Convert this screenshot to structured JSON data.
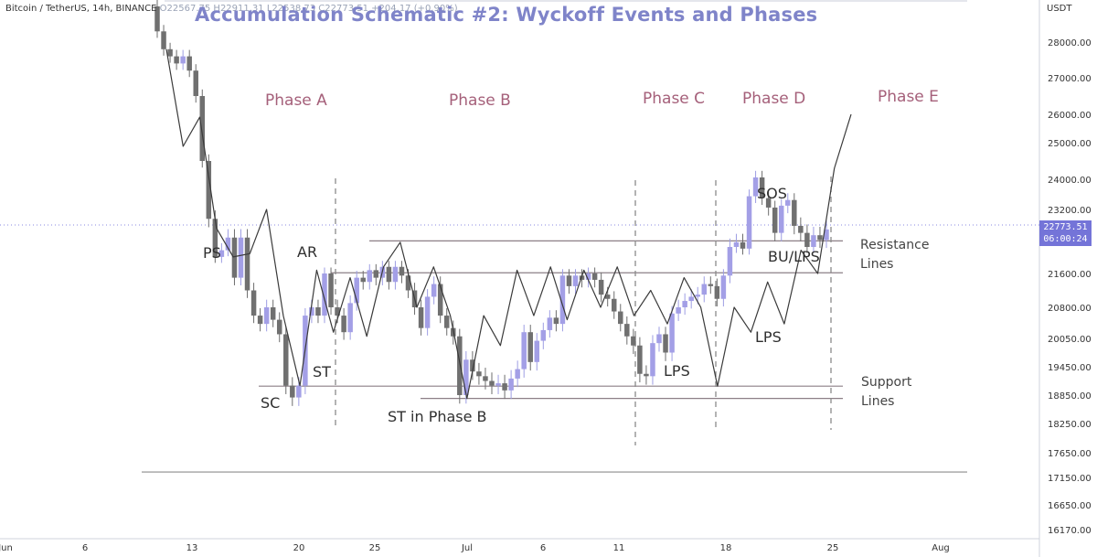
{
  "header": {
    "symbol": "Bitcoin / TetherUS, 14h, BINANCE",
    "ohlc": "O22567.75 H22911.31 L22538.73 C22773.51 +204.17 (+0.90%)",
    "currency": "USDT"
  },
  "chart_data": {
    "type": "candlestick",
    "title": "Accumulation Schematic #2: Wyckoff Events and Phases",
    "price_axis": {
      "ticks": [
        28000.0,
        27000.0,
        26000.0,
        25000.0,
        24000.0,
        23200.0,
        21600.0,
        20800.0,
        20050.0,
        19450.0,
        18850.0,
        18250.0,
        17650.0,
        17150.0,
        16650.0,
        16170.0
      ],
      "tick_labels": [
        "28000.00",
        "27000.00",
        "26000.00",
        "25000.00",
        "24000.00",
        "23200.00",
        "21600.00",
        "20800.00",
        "20050.00",
        "19450.00",
        "18850.00",
        "18250.00",
        "17650.00",
        "17150.00",
        "16650.00",
        "16170.00"
      ],
      "current_price": "22773.51",
      "countdown": "06:00:24"
    },
    "time_axis": {
      "labels": [
        "Jun",
        "6",
        "13",
        "20",
        "25",
        "Jul",
        "6",
        "11",
        "18",
        "25",
        "Aug"
      ]
    },
    "phases": [
      "Phase A",
      "Phase B",
      "Phase C",
      "Phase D",
      "Phase E"
    ],
    "events": {
      "ps": "PS",
      "sc": "SC",
      "ar": "AR",
      "st": "ST",
      "st_phase_b": "ST in Phase B",
      "lps_c": "LPS",
      "lps_d": "LPS",
      "sos": "SOS",
      "bu_lps": "BU/LPS"
    },
    "side_labels": {
      "resistance": [
        "Resistance",
        "Lines"
      ],
      "support": [
        "Support",
        "Lines"
      ]
    },
    "levels": {
      "resistance_upper": 22530,
      "resistance_lower": 21620,
      "support_upper": 19040,
      "support_lower": 18780,
      "range_floor": 17260
    },
    "candles": [
      {
        "o": 29000,
        "c": 28300
      },
      {
        "o": 28300,
        "c": 27800
      },
      {
        "o": 27800,
        "c": 27600
      },
      {
        "o": 27600,
        "c": 27400
      },
      {
        "o": 27400,
        "c": 27600
      },
      {
        "o": 27600,
        "c": 27200
      },
      {
        "o": 27200,
        "c": 26500
      },
      {
        "o": 26500,
        "c": 24500
      },
      {
        "o": 24500,
        "c": 23000
      },
      {
        "o": 23000,
        "c": 22100
      },
      {
        "o": 22100,
        "c": 22300
      },
      {
        "o": 22300,
        "c": 22600
      },
      {
        "o": 22600,
        "c": 21500
      },
      {
        "o": 21500,
        "c": 22600
      },
      {
        "o": 22600,
        "c": 21200
      },
      {
        "o": 21200,
        "c": 20600
      },
      {
        "o": 20600,
        "c": 20400
      },
      {
        "o": 20400,
        "c": 20800
      },
      {
        "o": 20800,
        "c": 20500
      },
      {
        "o": 20500,
        "c": 20150
      },
      {
        "o": 20150,
        "c": 19050
      },
      {
        "o": 19050,
        "c": 18800
      },
      {
        "o": 18800,
        "c": 19050
      },
      {
        "o": 19050,
        "c": 20600
      },
      {
        "o": 20600,
        "c": 20800
      },
      {
        "o": 20800,
        "c": 20600
      },
      {
        "o": 20600,
        "c": 21600
      },
      {
        "o": 21600,
        "c": 20800
      },
      {
        "o": 20800,
        "c": 20600
      },
      {
        "o": 20600,
        "c": 20200
      },
      {
        "o": 20200,
        "c": 20900
      },
      {
        "o": 20900,
        "c": 21500
      },
      {
        "o": 21500,
        "c": 21400
      },
      {
        "o": 21400,
        "c": 21700
      },
      {
        "o": 21700,
        "c": 21500
      },
      {
        "o": 21500,
        "c": 21800
      },
      {
        "o": 21800,
        "c": 21400
      },
      {
        "o": 21400,
        "c": 21800
      },
      {
        "o": 21800,
        "c": 21550
      },
      {
        "o": 21550,
        "c": 21200
      },
      {
        "o": 21200,
        "c": 20800
      },
      {
        "o": 20800,
        "c": 20300
      },
      {
        "o": 20300,
        "c": 21050
      },
      {
        "o": 21050,
        "c": 21350
      },
      {
        "o": 21350,
        "c": 20600
      },
      {
        "o": 20600,
        "c": 20300
      },
      {
        "o": 20300,
        "c": 20100
      },
      {
        "o": 20100,
        "c": 18850
      },
      {
        "o": 18850,
        "c": 19600
      },
      {
        "o": 19600,
        "c": 19350
      },
      {
        "o": 19350,
        "c": 19250
      },
      {
        "o": 19250,
        "c": 19150
      },
      {
        "o": 19150,
        "c": 19050
      },
      {
        "o": 19050,
        "c": 19100
      },
      {
        "o": 19100,
        "c": 18950
      },
      {
        "o": 18950,
        "c": 19200
      },
      {
        "o": 19200,
        "c": 19400
      },
      {
        "o": 19400,
        "c": 20200
      },
      {
        "o": 20200,
        "c": 19550
      },
      {
        "o": 19550,
        "c": 20000
      },
      {
        "o": 20000,
        "c": 20250
      },
      {
        "o": 20250,
        "c": 20550
      },
      {
        "o": 20550,
        "c": 20400
      },
      {
        "o": 20400,
        "c": 21550
      },
      {
        "o": 21550,
        "c": 21300
      },
      {
        "o": 21300,
        "c": 21550
      },
      {
        "o": 21550,
        "c": 21450
      },
      {
        "o": 21450,
        "c": 21600
      },
      {
        "o": 21600,
        "c": 21450
      },
      {
        "o": 21450,
        "c": 21100
      },
      {
        "o": 21100,
        "c": 21000
      },
      {
        "o": 21000,
        "c": 20700
      },
      {
        "o": 20700,
        "c": 20400
      },
      {
        "o": 20400,
        "c": 20100
      },
      {
        "o": 20100,
        "c": 19900
      },
      {
        "o": 19900,
        "c": 19300
      },
      {
        "o": 19300,
        "c": 19250
      },
      {
        "o": 19250,
        "c": 19950
      },
      {
        "o": 19950,
        "c": 20150
      },
      {
        "o": 20150,
        "c": 19750
      },
      {
        "o": 19750,
        "c": 20650
      },
      {
        "o": 20650,
        "c": 20800
      },
      {
        "o": 20800,
        "c": 20950
      },
      {
        "o": 20950,
        "c": 21050
      },
      {
        "o": 21050,
        "c": 21100
      },
      {
        "o": 21100,
        "c": 21350
      },
      {
        "o": 21350,
        "c": 21300
      },
      {
        "o": 21300,
        "c": 21000
      },
      {
        "o": 21000,
        "c": 21550
      },
      {
        "o": 21550,
        "c": 22400
      },
      {
        "o": 22400,
        "c": 22500
      },
      {
        "o": 22500,
        "c": 22350
      },
      {
        "o": 22350,
        "c": 23550
      },
      {
        "o": 23550,
        "c": 24050
      },
      {
        "o": 24050,
        "c": 23500
      },
      {
        "o": 23500,
        "c": 23250
      },
      {
        "o": 23250,
        "c": 22700
      },
      {
        "o": 22700,
        "c": 23300
      },
      {
        "o": 23300,
        "c": 23450
      },
      {
        "o": 23450,
        "c": 22850
      },
      {
        "o": 22850,
        "c": 22700
      },
      {
        "o": 22700,
        "c": 22400
      },
      {
        "o": 22400,
        "c": 22650
      },
      {
        "o": 22650,
        "c": 22550
      },
      {
        "o": 22550,
        "c": 22773.51
      }
    ],
    "schematic_path": [
      27800,
      24900,
      25900,
      22800,
      22100,
      22200,
      23200,
      20600,
      19050,
      21700,
      20200,
      21500,
      20100,
      21800,
      22500,
      20800,
      21800,
      20600,
      18780,
      20600,
      19900,
      21700,
      20600,
      21800,
      20500,
      21700,
      20800,
      21800,
      20600,
      21200,
      20400,
      21500,
      20800,
      19040,
      20800,
      20200,
      21400,
      20400,
      22300,
      21600,
      24300,
      26000
    ]
  }
}
